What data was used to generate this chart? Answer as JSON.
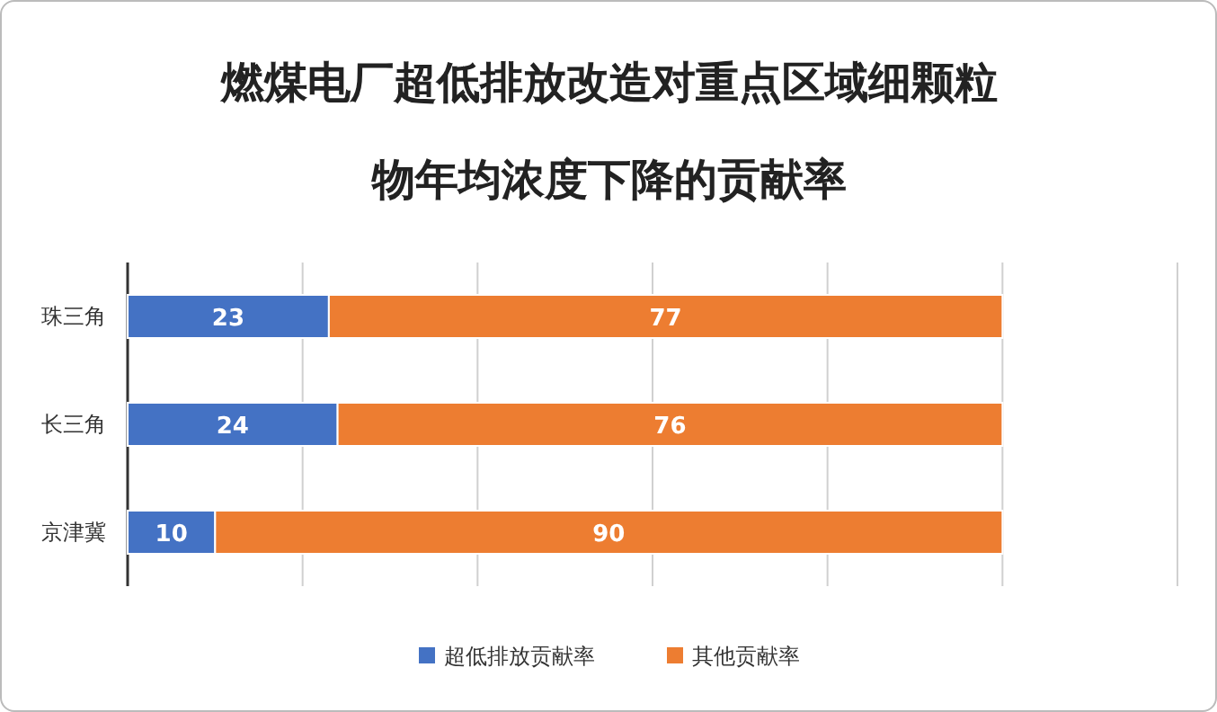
{
  "chart_data": {
    "type": "bar",
    "orientation": "horizontal",
    "stacked": true,
    "title": "燃煤电厂超低排放改造对重点区域细颗粒物年均浓度下降的贡献率",
    "categories": [
      "珠三角",
      "长三角",
      "京津冀"
    ],
    "series": [
      {
        "name": "超低排放贡献率",
        "color": "#4472c4",
        "values": [
          23,
          24,
          10
        ]
      },
      {
        "name": "其他贡献率",
        "color": "#ed7d31",
        "values": [
          77,
          76,
          90
        ]
      }
    ],
    "xlim": [
      0,
      120
    ],
    "xticks": [
      {
        "value": 0,
        "label": null
      },
      {
        "value": 20,
        "label": null
      },
      {
        "value": 40,
        "label": null
      },
      {
        "value": 60,
        "label": null
      },
      {
        "value": 80,
        "label": null
      },
      {
        "value": 100,
        "label": null
      },
      {
        "value": 120,
        "label": null
      }
    ],
    "grid": "x",
    "tick_labels": "y",
    "data_labels": true,
    "legend": "bottom"
  }
}
